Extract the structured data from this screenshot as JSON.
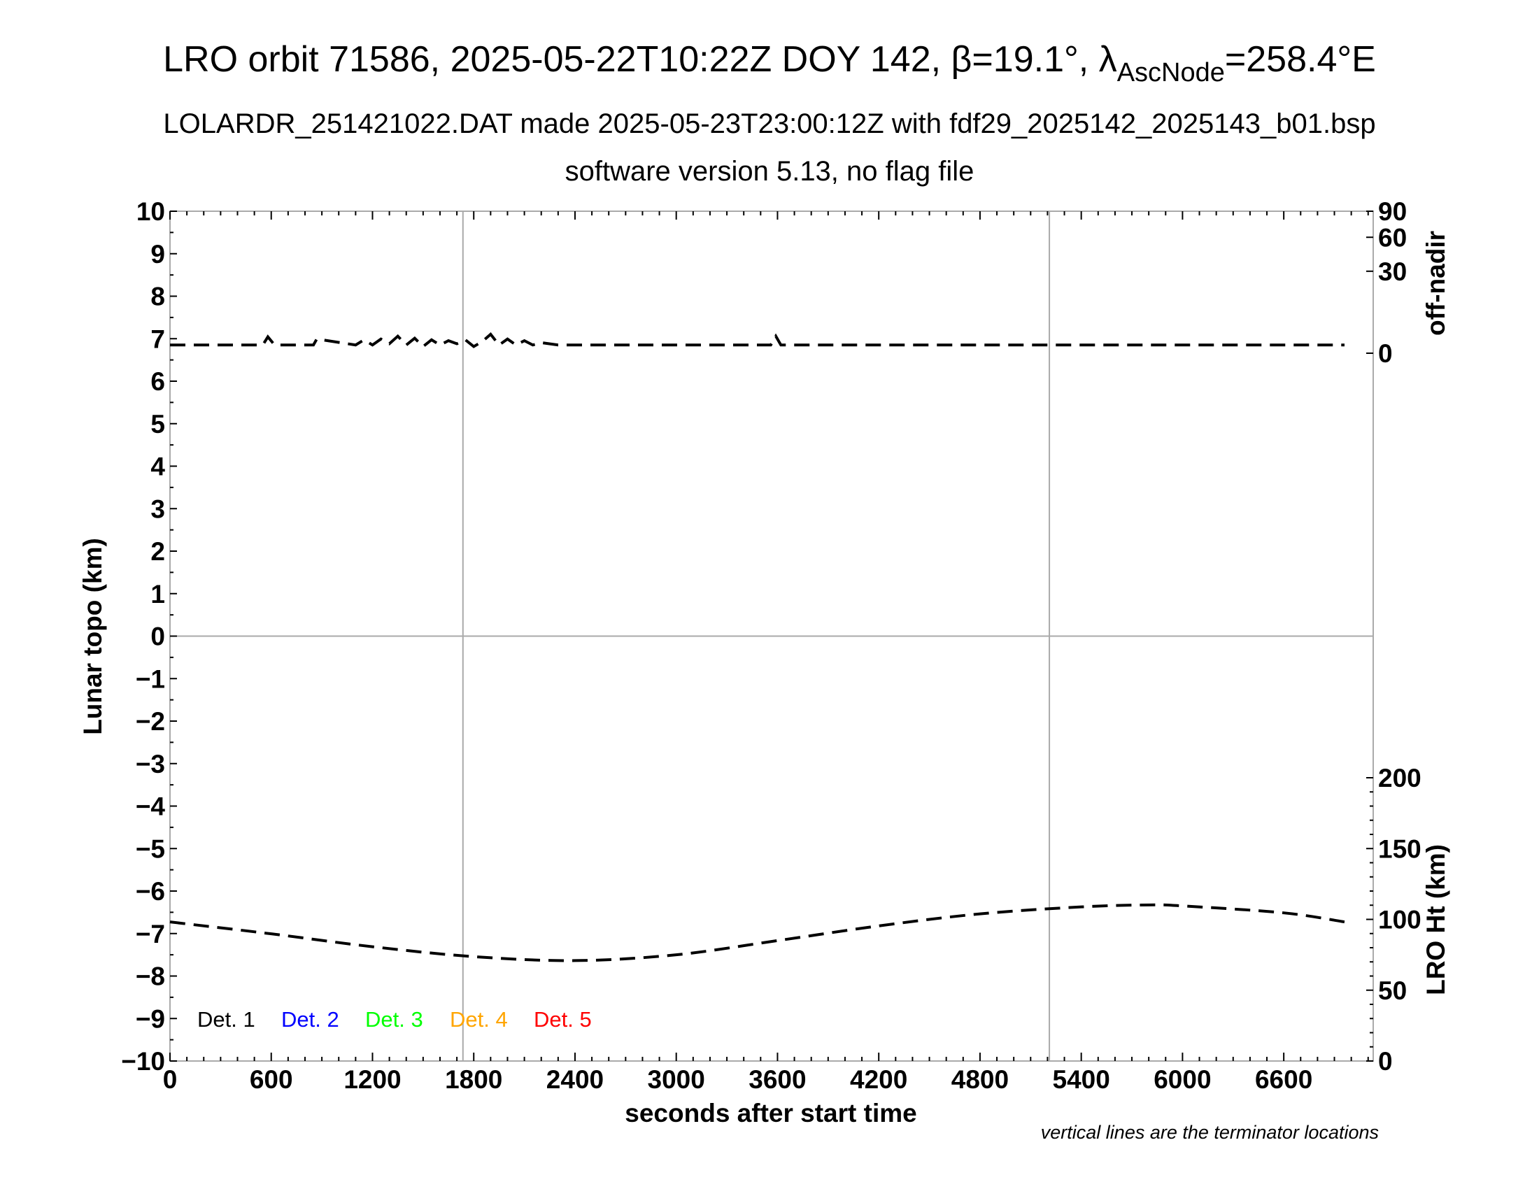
{
  "title": {
    "main_prefix": "LRO orbit 71586, 2025-05-22T10:22Z DOY 142, β=19.1°, λ",
    "main_sub": "AscNode",
    "main_suffix": "=258.4°E",
    "line2": "LOLARDR_251421022.DAT made 2025-05-23T23:00:12Z with fdf29_2025142_2025143_b01.bsp",
    "line3": "software version 5.13, no flag file"
  },
  "chart_data": {
    "type": "line",
    "xlabel": "seconds after start time",
    "ylabel_left": "Lunar topo (km)",
    "ylabel_right_top": "off-nadir",
    "ylabel_right_bottom": "LRO Ht (km)",
    "note": "vertical lines are the terminator locations",
    "xlim": [
      0,
      7130
    ],
    "ylim_left": [
      -10,
      10
    ],
    "x_ticks": [
      "0",
      "600",
      "1200",
      "1800",
      "2400",
      "3000",
      "3600",
      "4200",
      "4800",
      "5400",
      "6000",
      "6600"
    ],
    "y_ticks_left": [
      "10",
      "9",
      "8",
      "7",
      "6",
      "5",
      "4",
      "3",
      "2",
      "1",
      "0",
      "−1",
      "−2",
      "−3",
      "−4",
      "−5",
      "−6",
      "−7",
      "−8",
      "−9",
      "−10"
    ],
    "off_nadir_ticks": [
      "0",
      "30",
      "60",
      "90"
    ],
    "lro_ht_ticks": [
      "0",
      "50",
      "100",
      "150",
      "200"
    ],
    "terminators_s": [
      1736,
      5211
    ],
    "legend": [
      {
        "label": "Det. 1",
        "color": "#000000"
      },
      {
        "label": "Det. 2",
        "color": "#0000ff"
      },
      {
        "label": "Det. 3",
        "color": "#00ff00"
      },
      {
        "label": "Det. 4",
        "color": "#ffa500"
      },
      {
        "label": "Det. 5",
        "color": "#ff0000"
      }
    ],
    "series": [
      {
        "name": "LRO Ht (km)",
        "x": [
          0,
          600,
          1200,
          1800,
          2400,
          3000,
          3600,
          4200,
          4800,
          5400,
          5800,
          6000,
          6600,
          6960
        ],
        "y": [
          98.2,
          89.8,
          80.7,
          73.7,
          70.9,
          75.0,
          85.0,
          95.4,
          103.9,
          108.8,
          110.2,
          109.5,
          104.6,
          98.2
        ]
      },
      {
        "name": "off-nadir (deg)",
        "x": [
          0,
          550,
          580,
          620,
          850,
          870,
          1100,
          1150,
          1200,
          1250,
          1300,
          1350,
          1400,
          1450,
          1500,
          1550,
          1600,
          1650,
          1700,
          1750,
          1800,
          1850,
          1900,
          1950,
          2000,
          2050,
          2100,
          2150,
          2200,
          2300,
          3560,
          3590,
          3620,
          6960
        ],
        "y": [
          0.3,
          0.3,
          1.2,
          0.3,
          0.3,
          0.9,
          0.3,
          0.8,
          0.3,
          0.9,
          0.4,
          1.3,
          0.3,
          1.0,
          0.2,
          0.8,
          0.3,
          0.7,
          0.4,
          0.8,
          0.2,
          0.6,
          1.6,
          0.3,
          0.9,
          0.3,
          0.7,
          0.3,
          0.5,
          0.3,
          0.3,
          1.3,
          0.3,
          0.3
        ]
      }
    ]
  }
}
